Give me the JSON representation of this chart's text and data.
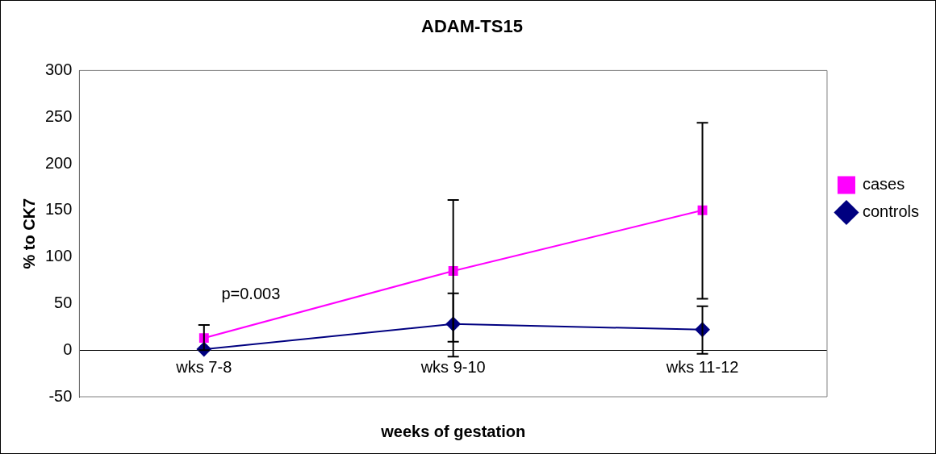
{
  "chart_data": {
    "type": "line",
    "title": "ADAM-TS15",
    "xlabel": "weeks of gestation",
    "ylabel": "% to CK7",
    "categories": [
      "wks 7-8",
      "wks 9-10",
      "wks 11-12"
    ],
    "series": [
      {
        "name": "cases",
        "color": "#ff00ff",
        "marker": "square",
        "values": [
          13,
          85,
          150
        ],
        "errors": [
          [
            0,
            27
          ],
          [
            9,
            161
          ],
          [
            55,
            244
          ]
        ]
      },
      {
        "name": "controls",
        "color": "#000080",
        "marker": "diamond",
        "values": [
          1,
          28,
          22
        ],
        "errors": [
          null,
          [
            -7,
            61
          ],
          [
            -4,
            47
          ]
        ]
      }
    ],
    "ylim": [
      -50,
      300
    ],
    "yticks": [
      -50,
      0,
      50,
      100,
      150,
      200,
      250,
      300
    ],
    "grid": false,
    "legend": "right",
    "line_style": "solid",
    "annotations": [
      "p=0.003"
    ]
  }
}
